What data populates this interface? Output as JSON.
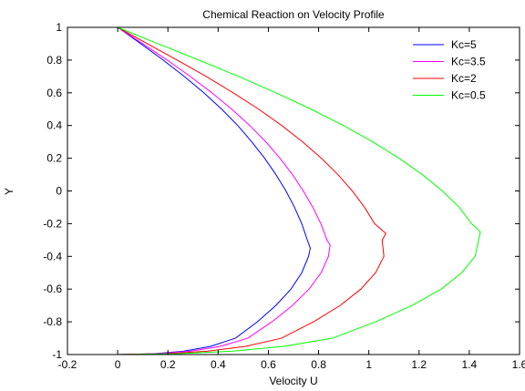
{
  "chart_data": {
    "type": "line",
    "title": "Chemical Reaction on Velocity Profile",
    "xlabel": "Velocity U",
    "ylabel": "Y",
    "xlim": [
      -0.2,
      1.6
    ],
    "ylim": [
      -1,
      1
    ],
    "xticks": [
      -0.2,
      0,
      0.2,
      0.4,
      0.6,
      0.8,
      1,
      1.2,
      1.4,
      1.6
    ],
    "xtick_labels": [
      "-0.2",
      "0",
      "0.2",
      "0.4",
      "0.6",
      "0.8",
      "1",
      "1.2",
      "1.4",
      "1.6"
    ],
    "yticks": [
      -1,
      -0.8,
      -0.6,
      -0.4,
      -0.2,
      0,
      0.2,
      0.4,
      0.6,
      0.8,
      1
    ],
    "ytick_labels": [
      "-1",
      "-0.8",
      "-0.6",
      "-0.4",
      "-0.2",
      "0",
      "0.2",
      "0.4",
      "0.6",
      "0.8",
      "1"
    ],
    "grid": false,
    "legend": "top-right",
    "series": [
      {
        "name": "Kc=5",
        "color": "#0000ff",
        "x": [
          0.0,
          0.092,
          0.181,
          0.265,
          0.343,
          0.414,
          0.478,
          0.534,
          0.585,
          0.63,
          0.67,
          0.704,
          0.733,
          0.755,
          0.767,
          0.76,
          0.733,
          0.69,
          0.63,
          0.556,
          0.469,
          0.37,
          0.261,
          0.144,
          0.0
        ],
        "y": [
          1.0,
          0.9,
          0.8,
          0.7,
          0.6,
          0.5,
          0.4,
          0.3,
          0.2,
          0.1,
          0.0,
          -0.1,
          -0.2,
          -0.3,
          -0.35,
          -0.4,
          -0.5,
          -0.6,
          -0.7,
          -0.8,
          -0.9,
          -0.95,
          -0.98,
          -0.995,
          -1.0
        ]
      },
      {
        "name": "Kc=3.5",
        "color": "#ff00ff",
        "x": [
          0.0,
          0.1,
          0.197,
          0.289,
          0.375,
          0.454,
          0.526,
          0.59,
          0.646,
          0.696,
          0.739,
          0.777,
          0.809,
          0.833,
          0.846,
          0.839,
          0.81,
          0.762,
          0.696,
          0.614,
          0.518,
          0.409,
          0.288,
          0.159,
          0.0
        ],
        "y": [
          1.0,
          0.9,
          0.8,
          0.7,
          0.6,
          0.5,
          0.4,
          0.3,
          0.2,
          0.1,
          0.0,
          -0.1,
          -0.2,
          -0.3,
          -0.33,
          -0.4,
          -0.5,
          -0.6,
          -0.7,
          -0.8,
          -0.9,
          -0.95,
          -0.98,
          -0.995,
          -1.0
        ]
      },
      {
        "name": "Kc=2",
        "color": "#ff0000",
        "x": [
          0.0,
          0.118,
          0.237,
          0.352,
          0.46,
          0.561,
          0.653,
          0.736,
          0.811,
          0.877,
          0.934,
          0.983,
          1.023,
          1.053,
          1.068,
          1.06,
          1.027,
          0.968,
          0.886,
          0.78,
          0.652,
          0.51,
          0.355,
          0.19,
          0.0
        ],
        "y": [
          1.0,
          0.9,
          0.8,
          0.7,
          0.6,
          0.5,
          0.4,
          0.3,
          0.2,
          0.1,
          0.0,
          -0.1,
          -0.2,
          -0.3,
          -0.26,
          -0.4,
          -0.5,
          -0.6,
          -0.7,
          -0.8,
          -0.9,
          -0.95,
          -0.98,
          -0.995,
          -1.0
        ]
      },
      {
        "name": "Kc=0.5",
        "color": "#00ff00",
        "x": [
          0.0,
          0.16,
          0.323,
          0.481,
          0.63,
          0.77,
          0.899,
          1.016,
          1.12,
          1.213,
          1.293,
          1.36,
          1.409,
          1.437,
          1.444,
          1.423,
          1.37,
          1.288,
          1.172,
          1.027,
          0.855,
          0.661,
          0.452,
          0.232,
          0.0
        ],
        "y": [
          1.0,
          0.9,
          0.8,
          0.7,
          0.6,
          0.5,
          0.4,
          0.3,
          0.2,
          0.1,
          0.0,
          -0.1,
          -0.2,
          -0.3,
          -0.25,
          -0.4,
          -0.5,
          -0.6,
          -0.7,
          -0.8,
          -0.9,
          -0.95,
          -0.98,
          -0.995,
          -1.0
        ]
      }
    ]
  }
}
